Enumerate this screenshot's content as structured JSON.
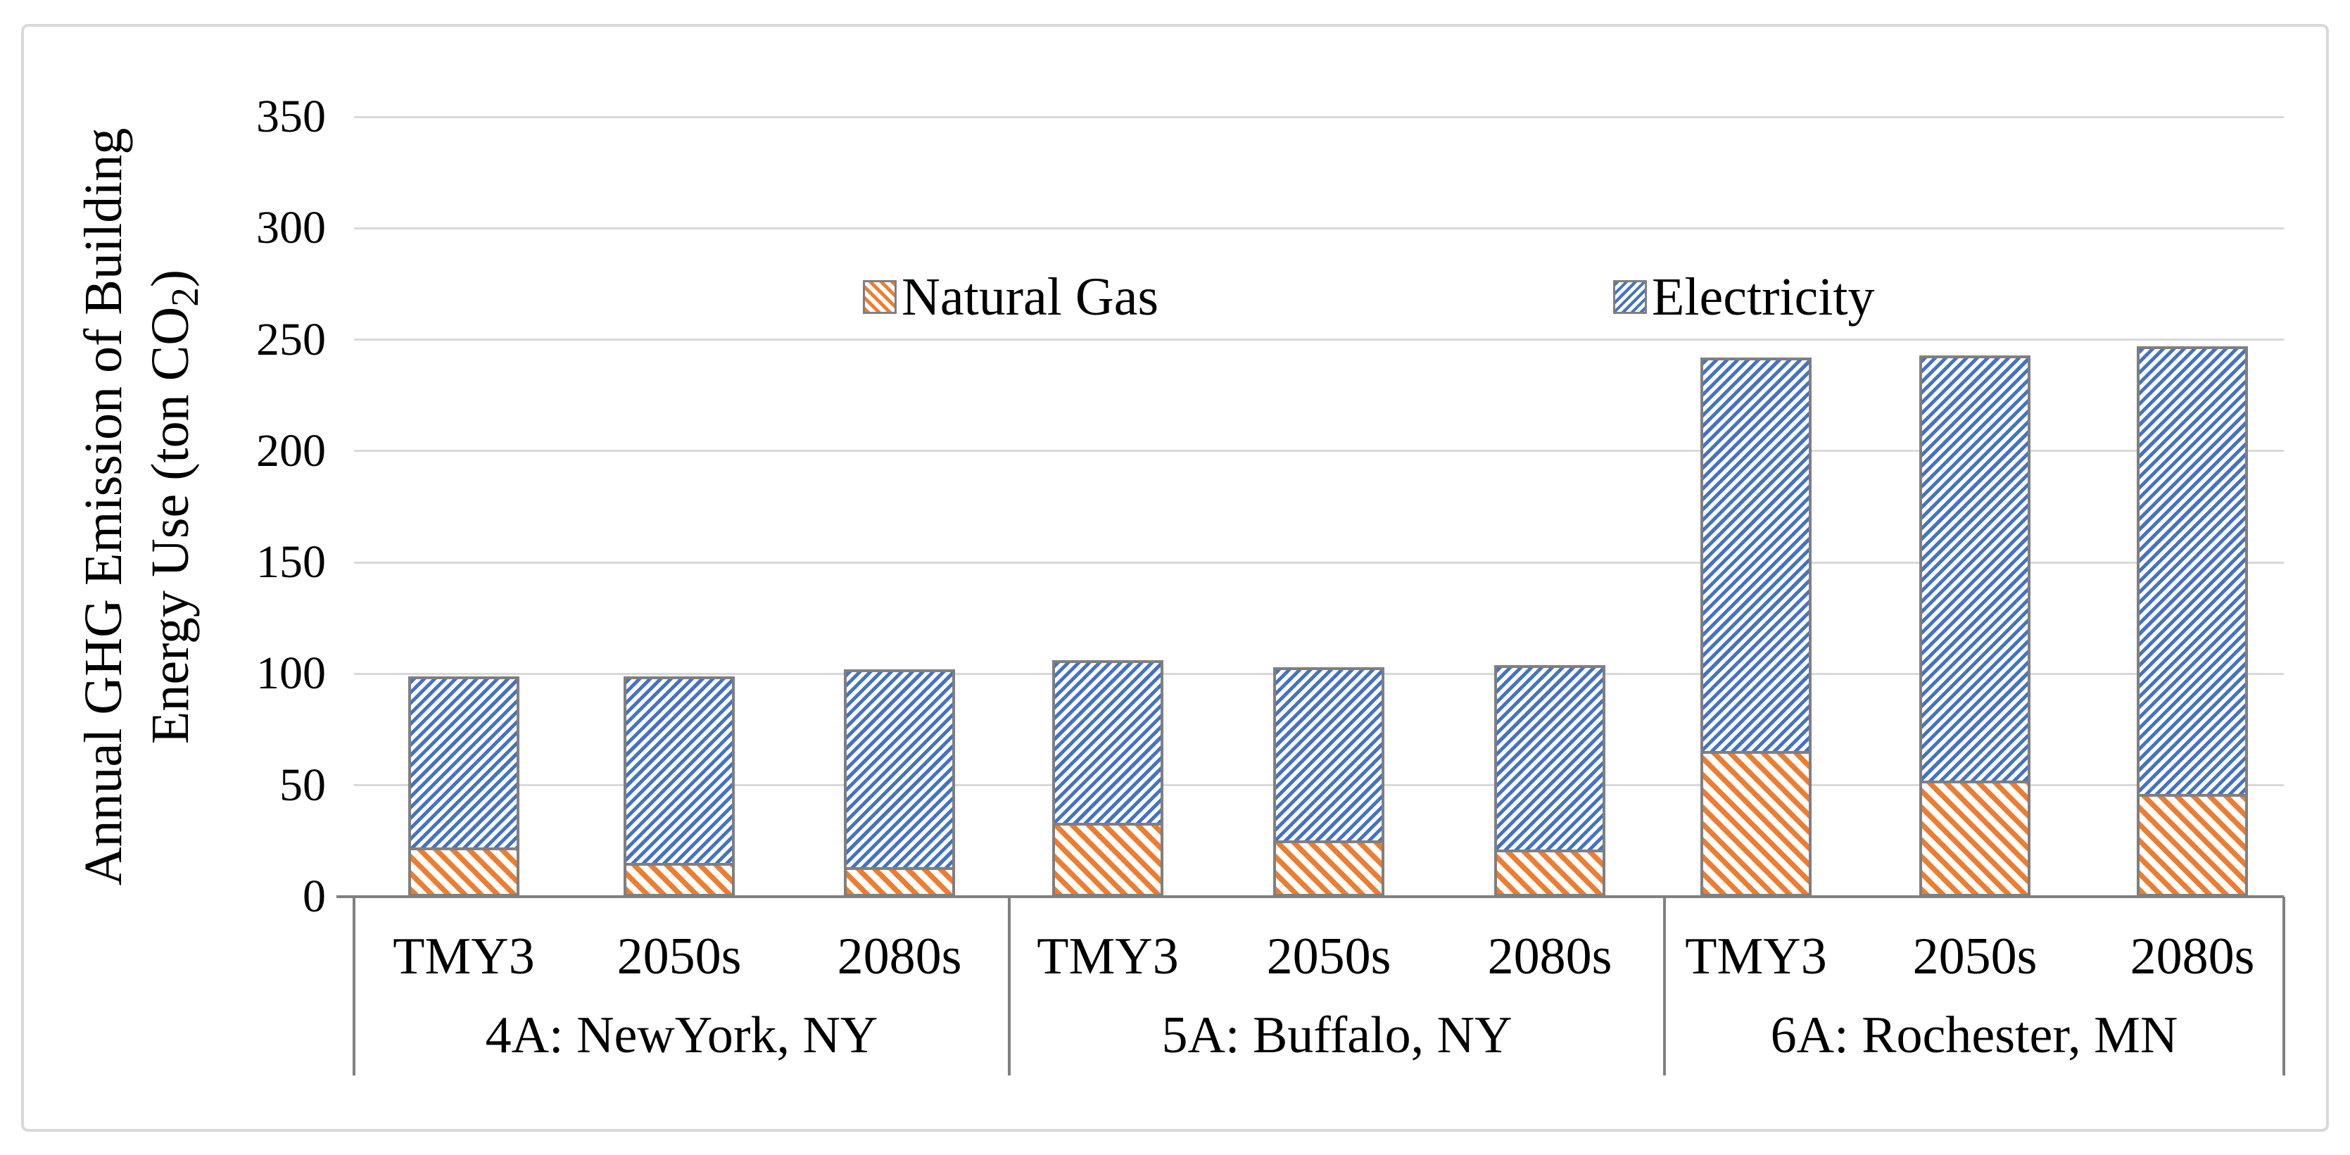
{
  "chart_data": {
    "type": "bar",
    "stacked": true,
    "title": "",
    "ylabel_line1": "Annual GHG Emission of Building",
    "ylabel_line2_pre": "Energy Use (ton CO",
    "ylabel_line2_sub": "2",
    "ylabel_line2_post": ")",
    "ylim": [
      0,
      350
    ],
    "ytick_step": 50,
    "yticks": [
      350,
      300,
      250,
      200,
      150,
      100,
      50,
      0
    ],
    "grid": true,
    "legend_position": "top-inside",
    "groups": [
      {
        "label": "4A: NewYork, NY",
        "categories": [
          "TMY3",
          "2050s",
          "2080s"
        ]
      },
      {
        "label": "5A: Buffalo, NY",
        "categories": [
          "TMY3",
          "2050s",
          "2080s"
        ]
      },
      {
        "label": "6A: Rochester, MN",
        "categories": [
          "TMY3",
          "2050s",
          "2080s"
        ]
      }
    ],
    "series": [
      {
        "name": "Natural Gas",
        "color": "#ED7D31",
        "hatch": "diagonal-down",
        "values": [
          21,
          14,
          12,
          32,
          24,
          20,
          64,
          51,
          45
        ]
      },
      {
        "name": "Electricity",
        "color": "#4472C4",
        "hatch": "diagonal-up",
        "values": [
          78,
          85,
          90,
          74,
          79,
          84,
          178,
          192,
          202
        ]
      }
    ],
    "stack_totals": [
      99,
      99,
      102,
      106,
      103,
      104,
      242,
      243,
      247
    ],
    "colors": {
      "gridline": "#D9D9D9",
      "axis": "#808080",
      "bar_border": "#7F7F7F",
      "frame": "#D9D9D9",
      "text": "#000000"
    }
  }
}
